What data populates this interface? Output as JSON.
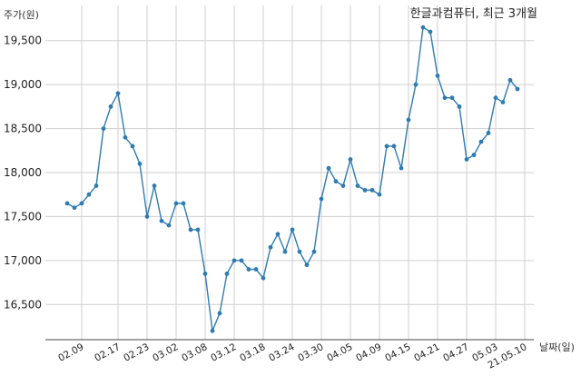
{
  "chart_data": {
    "type": "line",
    "title": "한글과컴퓨터, 최근 3개월",
    "xlabel": "날짜(일)",
    "ylabel": "주가(원)",
    "ylim": [
      16100,
      19900
    ],
    "yticks": [
      16500,
      17000,
      17500,
      18000,
      18500,
      19000,
      19500
    ],
    "ytick_labels": [
      "16,500",
      "17,000",
      "17,500",
      "18,000",
      "18,500",
      "19,000",
      "19,500"
    ],
    "x_tick_labels": [
      "02.09",
      "02.17",
      "02.23",
      "03.02",
      "03.08",
      "03.12",
      "03.18",
      "03.24",
      "03.30",
      "04.05",
      "04.09",
      "04.15",
      "04.21",
      "04.27",
      "05.03",
      "21.05.10"
    ],
    "x_tick_index": [
      2,
      7,
      11,
      15,
      19,
      23,
      27,
      31,
      35,
      39,
      43,
      47,
      51,
      55,
      59,
      63
    ],
    "grid": true,
    "color": "#2f7bb0",
    "series": [
      {
        "values": [
          17650,
          17600,
          17650,
          17750,
          17850,
          18500,
          18750,
          18900,
          18400,
          18300,
          18100,
          17500,
          17850,
          17450,
          17400,
          17650,
          17650,
          17350,
          17350,
          16850,
          16200,
          16400,
          16850,
          17000,
          17000,
          16900,
          16900,
          16800,
          17150,
          17300,
          17100,
          17350,
          17100,
          16950,
          17100,
          17700,
          18050,
          17900,
          17850,
          18150,
          17850,
          17800,
          17800,
          17750,
          18300,
          18300,
          18050,
          18600,
          19000,
          19650,
          19600,
          19100,
          18850,
          18850,
          18750,
          18150,
          18200,
          18350,
          18450,
          18850,
          18800,
          19050,
          18950
        ]
      }
    ]
  }
}
